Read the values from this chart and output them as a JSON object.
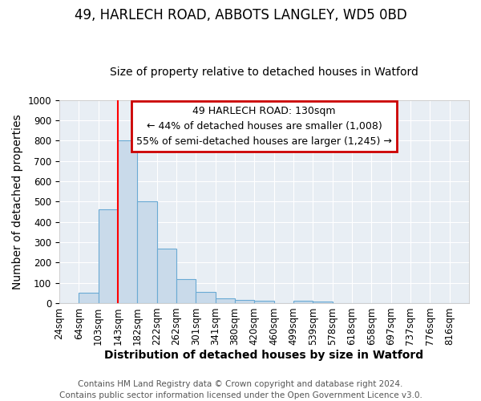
{
  "title": "49, HARLECH ROAD, ABBOTS LANGLEY, WD5 0BD",
  "subtitle": "Size of property relative to detached houses in Watford",
  "xlabel": "Distribution of detached houses by size in Watford",
  "ylabel": "Number of detached properties",
  "footer_line1": "Contains HM Land Registry data © Crown copyright and database right 2024.",
  "footer_line2": "Contains public sector information licensed under the Open Government Licence v3.0.",
  "bar_labels": [
    "24sqm",
    "64sqm",
    "103sqm",
    "143sqm",
    "182sqm",
    "222sqm",
    "262sqm",
    "301sqm",
    "341sqm",
    "380sqm",
    "420sqm",
    "460sqm",
    "499sqm",
    "539sqm",
    "578sqm",
    "618sqm",
    "658sqm",
    "697sqm",
    "737sqm",
    "776sqm",
    "816sqm"
  ],
  "bar_values": [
    0,
    50,
    460,
    800,
    500,
    270,
    120,
    55,
    22,
    15,
    12,
    0,
    10,
    8,
    0,
    0,
    0,
    0,
    0,
    0,
    0
  ],
  "bar_color": "#c9daea",
  "bar_edge_color": "#6aaad4",
  "annotation_text_line1": "49 HARLECH ROAD: 130sqm",
  "annotation_text_line2": "← 44% of detached houses are smaller (1,008)",
  "annotation_text_line3": "55% of semi-detached houses are larger (1,245) →",
  "annotation_box_color": "#ffffff",
  "annotation_box_edge_color": "#cc0000",
  "ylim": [
    0,
    1000
  ],
  "background_color": "#ffffff",
  "plot_bg_color": "#e8eef4",
  "grid_color": "#ffffff",
  "title_fontsize": 12,
  "subtitle_fontsize": 10,
  "axis_label_fontsize": 10,
  "tick_fontsize": 8.5,
  "footer_fontsize": 7.5,
  "red_line_index": 3
}
